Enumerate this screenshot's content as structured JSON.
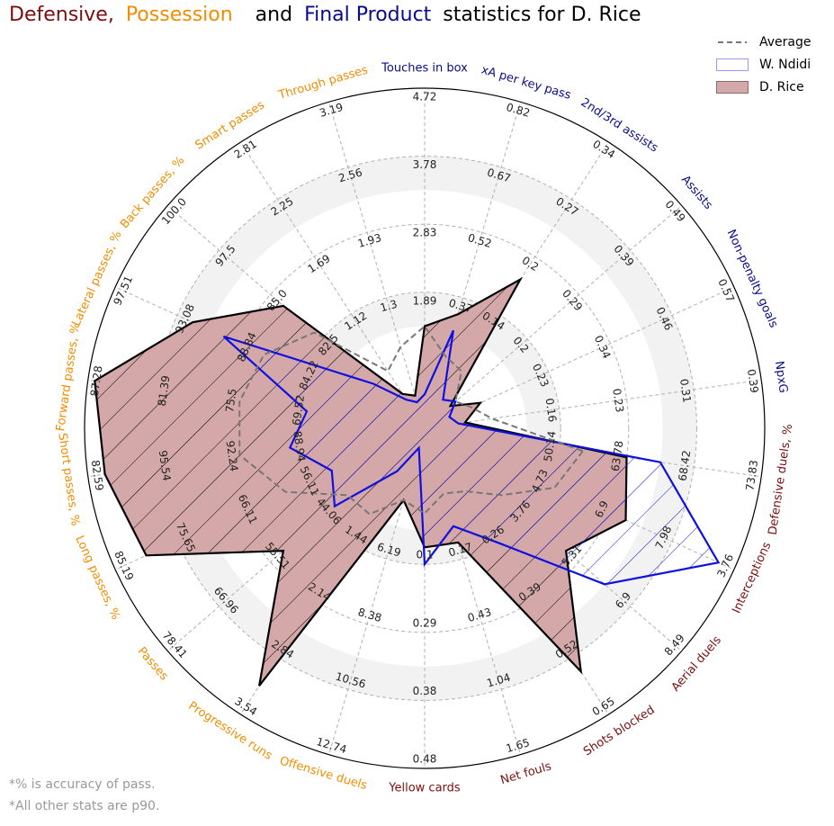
{
  "title": {
    "parts": [
      {
        "text": "Defensive,",
        "color": "#7b0e0e"
      },
      {
        "text": "Possession",
        "color": "#f28c00"
      },
      {
        "text": "and",
        "color": "#000000"
      },
      {
        "text": "Final Product",
        "color": "#0a0a8a"
      },
      {
        "text": "statistics for D. Rice",
        "color": "#000000"
      }
    ]
  },
  "footnotes": [
    "*% is accuracy of pass.",
    "*All other stats are p90."
  ],
  "colors": {
    "defensive": "#7b0e0e",
    "possession": "#f28c00",
    "final_product": "#0a0a8a",
    "rice_fill": "#d4a8a8",
    "ndidi_line": "#1010e0",
    "average_line": "#777777",
    "ring_fill": "#f2f2f2"
  },
  "chart_data": {
    "type": "radar",
    "legend": {
      "position": "top-right",
      "entries": [
        {
          "name": "Average",
          "style": "dashed-line"
        },
        {
          "name": "W. Ndidi",
          "style": "blue-outline"
        },
        {
          "name": "D. Rice",
          "style": "filled"
        }
      ]
    },
    "categories": [
      {
        "name": "Defensive duels, %",
        "group": "defensive",
        "ticks": [
          "50.14",
          "63.78",
          "68.42",
          "73.83"
        ],
        "avg": 0.47,
        "ndidi": 0.7,
        "rice": 0.6
      },
      {
        "name": "Interceptions",
        "group": "defensive",
        "ticks": [
          "4.73",
          "6.9",
          "7.98",
          "3.76"
        ],
        "avg": 0.42,
        "ndidi": 0.95,
        "rice": 0.65
      },
      {
        "name": "Aerial duels",
        "group": "defensive",
        "ticks": [
          "3.76",
          "5.31",
          "6.9",
          "8.49"
        ],
        "avg": 0.3,
        "ndidi": 0.7,
        "rice": 0.55
      },
      {
        "name": "Shots blocked",
        "group": "defensive",
        "ticks": [
          "0.26",
          "0.39",
          "0.52",
          "0.65"
        ],
        "avg": 0.22,
        "ndidi": 0.4,
        "rice": 0.85
      },
      {
        "name": "Net fouls",
        "group": "defensive",
        "ticks": [
          "0.17",
          "0.43",
          "1.04",
          "1.65"
        ],
        "avg": 0.2,
        "ndidi": 0.3,
        "rice": 0.35
      },
      {
        "name": "Yellow cards",
        "group": "defensive",
        "ticks": [
          "0.1",
          "0.29",
          "0.38",
          "0.48"
        ],
        "avg": 0.25,
        "ndidi": 0.4,
        "rice": 0.35
      },
      {
        "name": "Offensive duels",
        "group": "possession",
        "ticks": [
          "6.19",
          "8.38",
          "10.56",
          "12.74"
        ],
        "avg": 0.22,
        "ndidi": 0.06,
        "rice": 0.22
      },
      {
        "name": "Progressive runs",
        "group": "possession",
        "ticks": [
          "1.44",
          "2.14",
          "2.84",
          "3.54"
        ],
        "avg": 0.3,
        "ndidi": 0.15,
        "rice": 0.9
      },
      {
        "name": "Passes",
        "group": "possession",
        "ticks": [
          "44.06",
          "55.51",
          "66.96",
          "78.41"
        ],
        "avg": 0.3,
        "ndidi": 0.35,
        "rice": 0.55
      },
      {
        "name": "Long passes, %",
        "group": "possession",
        "ticks": [
          "56.11",
          "66.11",
          "75.65",
          "85.19"
        ],
        "avg": 0.45,
        "ndidi": 0.3,
        "rice": 0.9
      },
      {
        "name": "Short passes, %",
        "group": "possession",
        "ticks": [
          "88.94",
          "92.24",
          "95.54",
          "82.59"
        ],
        "avg": 0.55,
        "ndidi": 0.4,
        "rice": 0.95
      },
      {
        "name": "Forward passes, %",
        "group": "possession",
        "ticks": [
          "69.52",
          "75.5",
          "81.39",
          "87.28"
        ],
        "avg": 0.55,
        "ndidi": 0.35,
        "rice": 0.98
      },
      {
        "name": "Lateral passes, %",
        "group": "possession",
        "ticks": [
          "84.22",
          "88.84",
          "93.08",
          "97.51"
        ],
        "avg": 0.52,
        "ndidi": 0.65,
        "rice": 0.75
      },
      {
        "name": "Back passes, %",
        "group": "possession",
        "ticks": [
          "82.5",
          "85.0",
          "97.5",
          "100.0"
        ],
        "avg": 0.43,
        "ndidi": 0.2,
        "rice": 0.55
      },
      {
        "name": "Smart passes",
        "group": "possession",
        "ticks": [
          "1.12",
          "1.69",
          "2.25",
          "2.81"
        ],
        "avg": 0.2,
        "ndidi": 0.1,
        "rice": 0.12
      },
      {
        "name": "Through passes",
        "group": "possession",
        "ticks": [
          "1.3",
          "1.93",
          "2.56",
          "3.19"
        ],
        "avg": 0.25,
        "ndidi": 0.08,
        "rice": 0.1
      },
      {
        "name": "Touches in box",
        "group": "final_product",
        "ticks": [
          "1.89",
          "2.83",
          "3.78",
          "4.72"
        ],
        "avg": 0.3,
        "ndidi": 0.1,
        "rice": 0.3
      },
      {
        "name": "xA per key pass",
        "group": "final_product",
        "ticks": [
          "0.37",
          "0.52",
          "0.67",
          "0.82"
        ],
        "avg": 0.22,
        "ndidi": 0.3,
        "rice": 0.35
      },
      {
        "name": "2nd/3rd assists",
        "group": "final_product",
        "ticks": [
          "0.14",
          "0.2",
          "0.27",
          "0.34"
        ],
        "avg": 0.2,
        "ndidi": 0.1,
        "rice": 0.52
      },
      {
        "name": "Assists",
        "group": "final_product",
        "ticks": [
          "0.2",
          "0.29",
          "0.39",
          "0.49"
        ],
        "avg": 0.12,
        "ndidi": 0.12,
        "rice": 0.1
      },
      {
        "name": "Non-penalty goals",
        "group": "final_product",
        "ticks": [
          "0.23",
          "0.34",
          "0.46",
          "0.57"
        ],
        "avg": 0.15,
        "ndidi": 0.08,
        "rice": 0.18
      },
      {
        "name": "NpxG",
        "group": "final_product",
        "ticks": [
          "0.16",
          "0.23",
          "0.31",
          "0.39"
        ],
        "avg": 0.2,
        "ndidi": 0.1,
        "rice": 0.12
      }
    ]
  }
}
